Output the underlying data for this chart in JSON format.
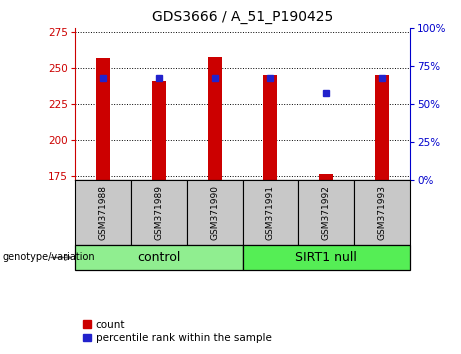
{
  "title": "GDS3666 / A_51_P190425",
  "samples": [
    "GSM371988",
    "GSM371989",
    "GSM371990",
    "GSM371991",
    "GSM371992",
    "GSM371993"
  ],
  "bar_values": [
    257,
    241,
    258,
    245,
    176,
    245
  ],
  "bar_bottom": 172,
  "blue_dot_values": [
    67,
    67,
    67,
    67,
    57,
    67
  ],
  "ylim_left": [
    172,
    278
  ],
  "ylim_right": [
    0,
    100
  ],
  "yticks_left": [
    175,
    200,
    225,
    250,
    275
  ],
  "yticks_right": [
    0,
    25,
    50,
    75,
    100
  ],
  "bar_color": "#cc0000",
  "blue_color": "#2222cc",
  "control_color": "#90ee90",
  "sirt1_color": "#55ee55",
  "sample_box_color": "#c8c8c8",
  "title_fontsize": 10,
  "tick_fontsize": 7.5,
  "left_axis_color": "#cc0000",
  "right_axis_color": "#0000cc",
  "group_label_fontsize": 9,
  "legend_fontsize": 7.5,
  "bar_width": 0.25,
  "groups": [
    {
      "label": "control",
      "start": 0,
      "end": 3
    },
    {
      "label": "SIRT1 null",
      "start": 3,
      "end": 6
    }
  ]
}
